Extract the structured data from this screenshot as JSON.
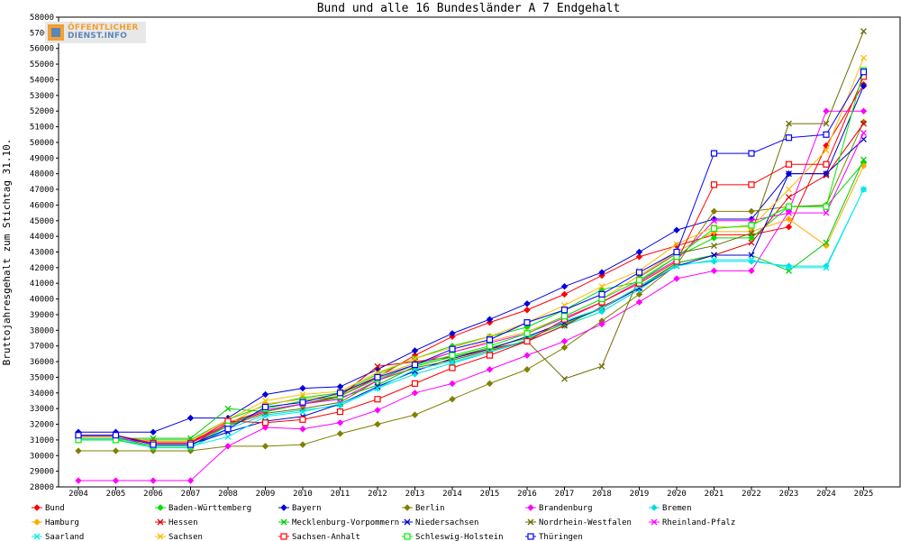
{
  "logo": {
    "line1": "ÖFFENTLICHER",
    "line2": "DIENST.INFO"
  },
  "chart_data": {
    "type": "line",
    "title": "Bund und alle 16 Bundesländer A 7 Endgehalt",
    "xlabel": "",
    "ylabel": "Bruttojahresgehalt zum Stichtag 31.10.",
    "x": [
      2004,
      2005,
      2006,
      2007,
      2008,
      2009,
      2010,
      2011,
      2012,
      2013,
      2014,
      2015,
      2016,
      2017,
      2018,
      2019,
      2020,
      2021,
      2022,
      2023,
      2024,
      2025
    ],
    "ylim": [
      28000,
      58000
    ],
    "ytick_step": 1000,
    "grid": false,
    "legend_position": "bottom",
    "series": [
      {
        "name": "Bund",
        "color": "#ff0000",
        "marker": "diamond",
        "values": [
          31200,
          31200,
          30600,
          30600,
          32100,
          32900,
          33300,
          33800,
          35000,
          36400,
          37600,
          38500,
          39300,
          40300,
          41500,
          42700,
          43400,
          44100,
          44100,
          44600,
          49800,
          53700
        ]
      },
      {
        "name": "Baden-Württemberg",
        "color": "#00dd00",
        "marker": "diamond",
        "values": [
          31000,
          31000,
          31000,
          31000,
          32300,
          33200,
          33700,
          34000,
          35200,
          36200,
          37000,
          37600,
          38200,
          39300,
          40600,
          41100,
          42700,
          43900,
          43900,
          45900,
          45900,
          48700
        ]
      },
      {
        "name": "Bayern",
        "color": "#0000dd",
        "marker": "diamond",
        "values": [
          31500,
          31500,
          31500,
          32400,
          32400,
          33900,
          34300,
          34400,
          35500,
          36700,
          37800,
          38700,
          39700,
          40800,
          41700,
          43000,
          44400,
          45100,
          45100,
          48000,
          48000,
          53600
        ]
      },
      {
        "name": "Berlin",
        "color": "#808000",
        "marker": "diamond",
        "values": [
          30300,
          30300,
          30300,
          30300,
          30600,
          30600,
          30700,
          31400,
          32000,
          32600,
          33600,
          34600,
          35500,
          36900,
          38600,
          40300,
          42200,
          45600,
          45600,
          45900,
          46000,
          51300
        ]
      },
      {
        "name": "Brandenburg",
        "color": "#ff00ff",
        "marker": "diamond",
        "values": [
          28400,
          28400,
          28400,
          28400,
          30600,
          31800,
          31700,
          32100,
          32900,
          34000,
          34600,
          35500,
          36400,
          37300,
          38400,
          39800,
          41300,
          41800,
          41800,
          45600,
          52000,
          52000
        ]
      },
      {
        "name": "Bremen",
        "color": "#00dddd",
        "marker": "diamond",
        "values": [
          31000,
          31000,
          30500,
          30500,
          31700,
          32600,
          32900,
          33200,
          34300,
          35200,
          35900,
          36600,
          37300,
          38300,
          39200,
          40600,
          42200,
          42400,
          42400,
          42100,
          42100,
          47000
        ]
      },
      {
        "name": "Hamburg",
        "color": "#ffaa00",
        "marker": "diamond",
        "values": [
          31200,
          31200,
          30800,
          30800,
          32000,
          33300,
          33600,
          33900,
          35100,
          35900,
          36600,
          37300,
          37900,
          38900,
          40000,
          41500,
          43000,
          44300,
          44300,
          45100,
          43400,
          48500
        ]
      },
      {
        "name": "Hessen",
        "color": "#dd0000",
        "marker": "x",
        "values": [
          31200,
          31200,
          30900,
          30900,
          32000,
          32800,
          33300,
          33800,
          35700,
          36000,
          36300,
          36800,
          37300,
          38300,
          39500,
          40700,
          42300,
          42800,
          43600,
          46500,
          47900,
          51200
        ]
      },
      {
        "name": "Mecklenburg-Vorpommern",
        "color": "#00cc00",
        "marker": "x",
        "values": [
          31100,
          31100,
          31100,
          31100,
          33000,
          32800,
          33300,
          33700,
          34500,
          35700,
          36300,
          36900,
          37500,
          38400,
          39400,
          40800,
          42300,
          42800,
          42800,
          41800,
          43600,
          48900
        ]
      },
      {
        "name": "Niedersachsen",
        "color": "#0000cc",
        "marker": "x",
        "values": [
          31300,
          31300,
          30700,
          30700,
          31500,
          32200,
          32500,
          33300,
          34400,
          35400,
          36200,
          36800,
          37600,
          38500,
          39400,
          40700,
          42100,
          42800,
          42800,
          48000,
          48000,
          50200
        ]
      },
      {
        "name": "Nordrhein-Westfalen",
        "color": "#6b6b00",
        "marker": "x",
        "values": [
          31100,
          31100,
          30800,
          30800,
          31900,
          32700,
          33000,
          33400,
          34800,
          35600,
          36100,
          36700,
          37300,
          34900,
          35700,
          41400,
          42900,
          43400,
          44200,
          51200,
          51200,
          57100
        ]
      },
      {
        "name": "Rheinland-Pfalz",
        "color": "#ff00ff",
        "marker": "x",
        "values": [
          31100,
          31100,
          30800,
          30800,
          32000,
          32900,
          33300,
          33600,
          34800,
          35800,
          36600,
          37200,
          37800,
          38800,
          39800,
          41100,
          42500,
          45000,
          45000,
          45500,
          45500,
          50600
        ]
      },
      {
        "name": "Saarland",
        "color": "#00eeee",
        "marker": "x",
        "values": [
          31100,
          31100,
          30600,
          30600,
          31200,
          32500,
          32800,
          33300,
          34300,
          35500,
          36000,
          36600,
          37400,
          38600,
          39400,
          40800,
          42100,
          42500,
          42500,
          42000,
          42000,
          47000
        ]
      },
      {
        "name": "Sachsen",
        "color": "#ffbb00",
        "marker": "x",
        "values": [
          31200,
          31200,
          30900,
          30900,
          32300,
          33500,
          33900,
          34100,
          35300,
          36200,
          36900,
          37600,
          38500,
          39600,
          40800,
          41800,
          43500,
          44600,
          44600,
          47000,
          49500,
          55400
        ]
      },
      {
        "name": "Sachsen-Anhalt",
        "color": "#ff0000",
        "marker": "square",
        "values": [
          31300,
          31300,
          30800,
          30800,
          32200,
          32100,
          32300,
          32800,
          33600,
          34600,
          35600,
          36400,
          37300,
          38700,
          39800,
          41000,
          42400,
          47300,
          47300,
          48600,
          48600,
          54200
        ]
      },
      {
        "name": "Schleswig-Holstein",
        "color": "#00ee00",
        "marker": "square",
        "values": [
          31000,
          31000,
          30600,
          30600,
          31900,
          33000,
          33500,
          33800,
          34900,
          35800,
          36400,
          37000,
          37800,
          38900,
          40000,
          41200,
          42700,
          44500,
          44700,
          45900,
          45900,
          54600
        ]
      },
      {
        "name": "Thüringen",
        "color": "#0000ff",
        "marker": "square",
        "values": [
          31300,
          31300,
          30700,
          30700,
          31700,
          33100,
          33400,
          34000,
          35000,
          35800,
          36800,
          37400,
          38500,
          39300,
          40300,
          41700,
          43000,
          49300,
          49300,
          50300,
          50500,
          54500
        ]
      }
    ]
  }
}
